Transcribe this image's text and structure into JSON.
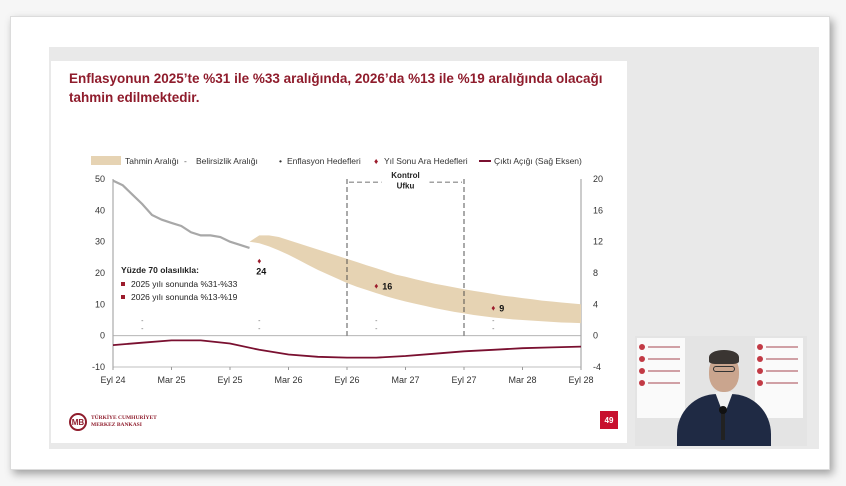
{
  "title": "Enflasyonun 2025’te %31 ile %33 aralığında, 2026’da %13 ile %19 aralığında olacağı tahmin edilmektedir.",
  "legend": {
    "forecast_range": "Tahmin Aralığı",
    "uncertainty_range": "Belirsizlik Aralığı",
    "inflation_targets": "Enflasyon Hedefleri",
    "year_end_interim_targets": "Yıl Sonu Ara Hedefleri",
    "output_gap": "Çıktı Açığı (Sağ Eksen)"
  },
  "control_horizon": {
    "line1": "Kontrol",
    "line2": "Ufku"
  },
  "probability_box": {
    "heading": "Yüzde 70 olasılıkla:",
    "items": [
      "2025 yılı sonunda %31-%33",
      "2026 yılı sonunda %13-%19"
    ]
  },
  "page_number": "49",
  "logo_text": "TÜRKİYE CUMHURİYET\nMERKEZ BANKASI",
  "logo_mark": "TCMB",
  "colors": {
    "title": "#8f1c2c",
    "band": "#e6d3b3",
    "inflation_line": "#a8a8a8",
    "output_gap_line": "#7a1030",
    "interim_marker": "#9c1c2c",
    "page_badge": "#c8102e"
  },
  "chart_data": {
    "type": "area",
    "x_ticks": [
      "Eyl 24",
      "Mar 25",
      "Eyl 25",
      "Mar 26",
      "Eyl 26",
      "Mar 27",
      "Eyl 27",
      "Mar 28",
      "Eyl 28"
    ],
    "x_unit": "months since Eyl 24",
    "left_axis": {
      "ticks": [
        -10,
        0,
        10,
        20,
        30,
        40,
        50
      ],
      "ylim": [
        -10,
        50
      ]
    },
    "right_axis": {
      "ticks": [
        -4,
        0,
        4,
        8,
        12,
        16,
        20
      ],
      "ylim": [
        -4,
        20
      ]
    },
    "inflation": {
      "x": [
        0,
        1,
        2,
        3,
        4,
        5,
        6,
        7,
        8,
        9,
        10,
        11,
        12,
        13,
        14
      ],
      "y": [
        49.5,
        48,
        45,
        42,
        38.5,
        37,
        36,
        35,
        33,
        32,
        32,
        31.5,
        30,
        29,
        28
      ]
    },
    "forecast_band": {
      "x": [
        14,
        15,
        16,
        17,
        18,
        19,
        20,
        21,
        22,
        23,
        24,
        25,
        26,
        27,
        28,
        29,
        30,
        31,
        32,
        33,
        34,
        35,
        36,
        37,
        38,
        39,
        40,
        41,
        42,
        43,
        44,
        45,
        46,
        47,
        48
      ],
      "upper": [
        30,
        32,
        32,
        31.5,
        30.5,
        29.5,
        28.5,
        27.5,
        26.5,
        25.5,
        24.5,
        23.5,
        22.5,
        21.5,
        20.5,
        19.5,
        18.8,
        18,
        17.3,
        16.6,
        16,
        15.4,
        14.8,
        14.3,
        13.8,
        13.3,
        12.8,
        12.4,
        12,
        11.6,
        11.2,
        10.9,
        10.6,
        10.3,
        10
      ],
      "lower": [
        30,
        29.5,
        28.5,
        27.2,
        25.8,
        24.2,
        22.6,
        21,
        19.6,
        18.2,
        16.8,
        15.6,
        14.6,
        13.6,
        12.6,
        11.7,
        10.9,
        10.2,
        9.5,
        8.8,
        8.2,
        7.6,
        7.1,
        6.6,
        6.2,
        5.8,
        5.5,
        5.2,
        5,
        4.8,
        4.6,
        4.4,
        4.2,
        4.1,
        4
      ]
    },
    "interim_targets": [
      {
        "x": 15,
        "y": 24,
        "label": "24"
      },
      {
        "x": 27,
        "y": 16,
        "label": "16"
      },
      {
        "x": 39,
        "y": 9,
        "label": "9"
      }
    ],
    "uncertainty_markers": [
      {
        "x": 3
      },
      {
        "x": 15
      },
      {
        "x": 27
      },
      {
        "x": 39
      }
    ],
    "output_gap": {
      "x": [
        0,
        3,
        6,
        9,
        12,
        15,
        18,
        21,
        24,
        27,
        30,
        33,
        36,
        39,
        42,
        45,
        48
      ],
      "y": [
        -1.2,
        -0.9,
        -0.6,
        -0.6,
        -1.0,
        -1.8,
        -2.4,
        -2.7,
        -2.8,
        -2.8,
        -2.6,
        -2.3,
        -2.0,
        -1.8,
        -1.6,
        -1.5,
        -1.4
      ]
    },
    "control_horizon_x": [
      24,
      36
    ]
  }
}
